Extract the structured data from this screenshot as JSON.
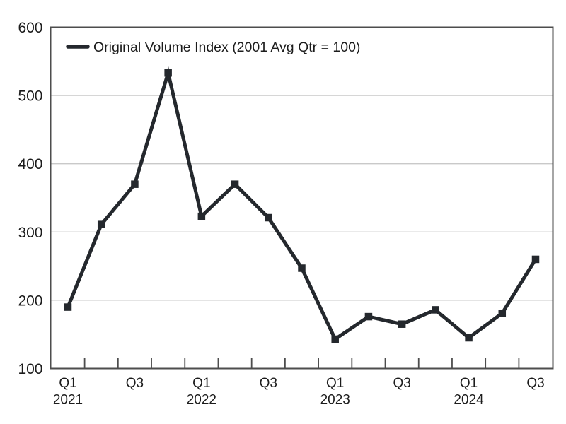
{
  "chart_data": {
    "type": "line",
    "title": "",
    "xlabel": "",
    "ylabel": "",
    "legend": {
      "label": "Original Volume Index (2001 Avg Qtr = 100)",
      "position": "top-left"
    },
    "categories": [
      "2021 Q1",
      "2021 Q2",
      "2021 Q3",
      "2021 Q4",
      "2022 Q1",
      "2022 Q2",
      "2022 Q3",
      "2022 Q4",
      "2023 Q1",
      "2023 Q2",
      "2023 Q3",
      "2023 Q4",
      "2024 Q1",
      "2024 Q2",
      "2024 Q3"
    ],
    "series": [
      {
        "name": "Original Volume Index (2001 Avg Qtr = 100)",
        "values": [
          190,
          311,
          370,
          533,
          323,
          370,
          321,
          247,
          143,
          176,
          165,
          186,
          145,
          181,
          260
        ],
        "marker": "square"
      }
    ],
    "ylim": [
      100,
      600
    ],
    "y_ticks": [
      100,
      200,
      300,
      400,
      500,
      600
    ],
    "x_axis_labels": [
      {
        "index": 0,
        "quarter": "Q1",
        "year": "2021"
      },
      {
        "index": 2,
        "quarter": "Q3"
      },
      {
        "index": 4,
        "quarter": "Q1",
        "year": "2022"
      },
      {
        "index": 6,
        "quarter": "Q3"
      },
      {
        "index": 8,
        "quarter": "Q1",
        "year": "2023"
      },
      {
        "index": 10,
        "quarter": "Q3"
      },
      {
        "index": 12,
        "quarter": "Q1",
        "year": "2024"
      },
      {
        "index": 14,
        "quarter": "Q3"
      }
    ],
    "grid": "horizontal",
    "legend_visible": true,
    "colors": {
      "line": "#24282d",
      "marker": "#24282d",
      "spine": "#4d4d4d",
      "tick": "#4d4d4d",
      "gridline": "#c9c9c9",
      "text": "#1c1c1c",
      "background": "#ffffff"
    }
  }
}
